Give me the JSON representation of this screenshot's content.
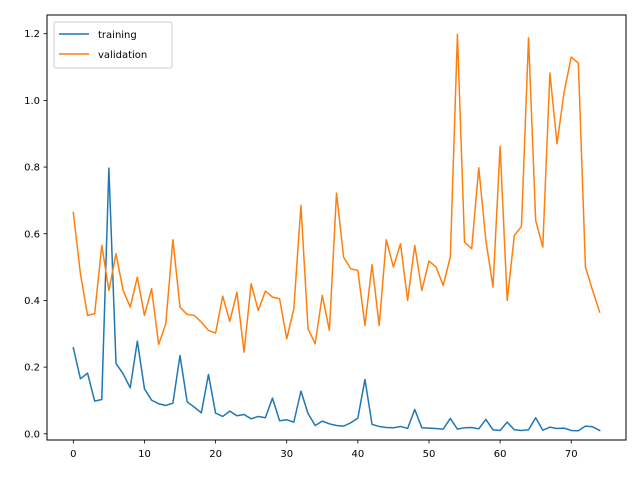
{
  "chart_data": {
    "type": "line",
    "title": "",
    "xlabel": "",
    "ylabel": "",
    "xlim": [
      -3.7,
      77.7
    ],
    "ylim": [
      -0.0186,
      1.2561
    ],
    "xticks": [
      0,
      10,
      20,
      30,
      40,
      50,
      60,
      70
    ],
    "yticks": [
      0.0,
      0.2,
      0.4,
      0.6,
      0.8,
      1.0,
      1.2
    ],
    "xtick_labels": [
      "0",
      "10",
      "20",
      "30",
      "40",
      "50",
      "60",
      "70"
    ],
    "ytick_labels": [
      "0.0",
      "0.2",
      "0.4",
      "0.6",
      "0.8",
      "1.0",
      "1.2"
    ],
    "grid": false,
    "legend_position": "top-left",
    "x": [
      0,
      1,
      2,
      3,
      4,
      5,
      6,
      7,
      8,
      9,
      10,
      11,
      12,
      13,
      14,
      15,
      16,
      17,
      18,
      19,
      20,
      21,
      22,
      23,
      24,
      25,
      26,
      27,
      28,
      29,
      30,
      31,
      32,
      33,
      34,
      35,
      36,
      37,
      38,
      39,
      40,
      41,
      42,
      43,
      44,
      45,
      46,
      47,
      48,
      49,
      50,
      51,
      52,
      53,
      54,
      55,
      56,
      57,
      58,
      59,
      60,
      61,
      62,
      63,
      64,
      65,
      66,
      67,
      68,
      69,
      70,
      71,
      72,
      73,
      74
    ],
    "series": [
      {
        "name": "training",
        "color": "#1f77b4",
        "values": [
          0.258,
          0.165,
          0.182,
          0.098,
          0.103,
          0.797,
          0.211,
          0.18,
          0.138,
          0.278,
          0.135,
          0.101,
          0.09,
          0.085,
          0.092,
          0.235,
          0.096,
          0.08,
          0.063,
          0.178,
          0.062,
          0.052,
          0.068,
          0.054,
          0.058,
          0.045,
          0.052,
          0.048,
          0.107,
          0.039,
          0.042,
          0.035,
          0.128,
          0.061,
          0.025,
          0.038,
          0.03,
          0.025,
          0.023,
          0.033,
          0.047,
          0.163,
          0.028,
          0.022,
          0.019,
          0.018,
          0.022,
          0.016,
          0.073,
          0.018,
          0.017,
          0.016,
          0.014,
          0.046,
          0.014,
          0.018,
          0.019,
          0.015,
          0.043,
          0.012,
          0.01,
          0.035,
          0.012,
          0.01,
          0.012,
          0.048,
          0.011,
          0.02,
          0.016,
          0.017,
          0.01,
          0.009,
          0.023,
          0.021,
          0.01
        ]
      },
      {
        "name": "validation",
        "color": "#ff7f0e",
        "values": [
          0.664,
          0.48,
          0.355,
          0.36,
          0.565,
          0.43,
          0.54,
          0.43,
          0.38,
          0.47,
          0.355,
          0.435,
          0.268,
          0.33,
          0.582,
          0.38,
          0.358,
          0.355,
          0.335,
          0.31,
          0.302,
          0.413,
          0.337,
          0.425,
          0.245,
          0.45,
          0.37,
          0.428,
          0.41,
          0.405,
          0.285,
          0.375,
          0.685,
          0.315,
          0.27,
          0.415,
          0.31,
          0.722,
          0.53,
          0.495,
          0.49,
          0.325,
          0.507,
          0.325,
          0.582,
          0.5,
          0.57,
          0.4,
          0.565,
          0.43,
          0.518,
          0.5,
          0.445,
          0.53,
          1.198,
          0.575,
          0.555,
          0.798,
          0.58,
          0.44,
          0.862,
          0.4,
          0.595,
          0.622,
          1.188,
          0.64,
          0.56,
          1.082,
          0.87,
          1.025,
          1.13,
          1.112,
          0.5,
          0.43,
          0.365
        ]
      }
    ]
  }
}
